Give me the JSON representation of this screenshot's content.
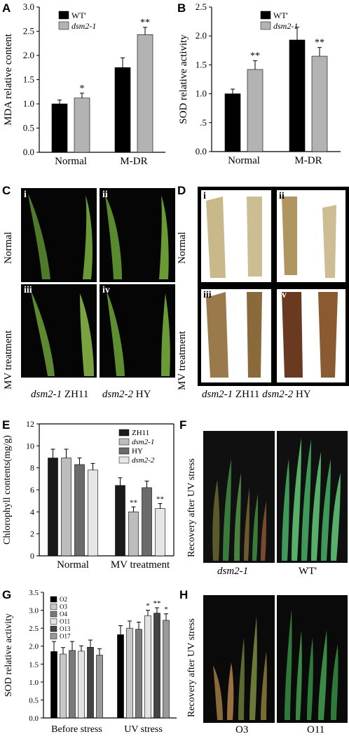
{
  "panels": {
    "A": {
      "label": "A",
      "chart_data": {
        "type": "bar",
        "ylabel": "MDA relative content",
        "categories": [
          "Normal",
          "M-DR"
        ],
        "ylim": [
          0,
          3.0
        ],
        "yticks": [
          "0.0",
          "0.5",
          "1.0",
          "1.5",
          "2.0",
          "2.5",
          "3.0"
        ],
        "series": [
          {
            "name": "WT'",
            "color": "#000000",
            "values": [
              1.0,
              1.75
            ],
            "errors": [
              0.08,
              0.2
            ],
            "sig": [
              "",
              ""
            ]
          },
          {
            "name": "dsm2-1",
            "color": "#b3b3b3",
            "values": [
              1.12,
              2.43
            ],
            "errors": [
              0.1,
              0.15
            ],
            "sig": [
              "*",
              "**"
            ]
          }
        ],
        "legend": "top-left"
      }
    },
    "B": {
      "label": "B",
      "chart_data": {
        "type": "bar",
        "ylabel": "SOD relative activity",
        "categories": [
          "Normal",
          "M-DR"
        ],
        "ylim": [
          0,
          2.5
        ],
        "yticks": [
          "0.0",
          ".5",
          "1.0",
          "1.5",
          "2.0",
          "2.5"
        ],
        "series": [
          {
            "name": "WT'",
            "color": "#000000",
            "values": [
              1.0,
              1.93
            ],
            "errors": [
              0.08,
              0.22
            ],
            "sig": [
              "",
              ""
            ]
          },
          {
            "name": "dsm2-1",
            "color": "#b3b3b3",
            "values": [
              1.42,
              1.65
            ],
            "errors": [
              0.15,
              0.15
            ],
            "sig": [
              "**",
              "**"
            ]
          }
        ],
        "legend": "top-left"
      }
    },
    "C": {
      "label": "C",
      "row_labels": [
        "Normal",
        "MV treatment"
      ],
      "sub": [
        "i",
        "ii",
        "iii",
        "iv"
      ],
      "captions": [
        "dsm2-1",
        "ZH11",
        "dsm2-2",
        "HY"
      ]
    },
    "D": {
      "label": "D",
      "row_labels": [
        "Normal",
        "MV treatment"
      ],
      "sub": [
        "i",
        "ii",
        "iii",
        "iv"
      ],
      "captions": [
        "dsm2-1",
        "ZH11",
        "dsm2-2",
        "HY"
      ]
    },
    "E": {
      "label": "E",
      "chart_data": {
        "type": "bar",
        "ylabel": "Chlorophyll contents(mg/g)",
        "categories": [
          "Normal",
          "MV treatment"
        ],
        "ylim": [
          0,
          12
        ],
        "yticks": [
          "0",
          "2",
          "4",
          "6",
          "8",
          "10",
          "12"
        ],
        "series": [
          {
            "name": "ZH11",
            "color": "#1a1a1a",
            "values": [
              8.9,
              6.4
            ],
            "errors": [
              0.8,
              0.7
            ],
            "sig": [
              "",
              ""
            ]
          },
          {
            "name": "dsm2-1",
            "color": "#bdbdbd",
            "values": [
              8.9,
              4.0
            ],
            "errors": [
              0.8,
              0.45
            ],
            "sig": [
              "",
              "**"
            ]
          },
          {
            "name": "HY",
            "color": "#6b6b6b",
            "values": [
              8.3,
              6.2
            ],
            "errors": [
              0.6,
              0.6
            ],
            "sig": [
              "",
              ""
            ]
          },
          {
            "name": "dsm2-2",
            "color": "#e6e6e6",
            "values": [
              7.8,
              4.3
            ],
            "errors": [
              0.6,
              0.45
            ],
            "sig": [
              "",
              "**"
            ]
          }
        ],
        "legend": "top-right"
      }
    },
    "F": {
      "label": "F",
      "side_label": "Recovery after UV stress",
      "captions": [
        "dsm2-1",
        "WT'"
      ]
    },
    "G": {
      "label": "G",
      "chart_data": {
        "type": "bar",
        "ylabel": "SOD relative activity",
        "categories": [
          "Before stress",
          "UV stress"
        ],
        "ylim": [
          0,
          3.5
        ],
        "yticks": [
          "0.0",
          "0.5",
          "1.0",
          "1.5",
          "2.0",
          "2.5",
          "3.0",
          "3.5"
        ],
        "series": [
          {
            "name": "O2",
            "color": "#000000",
            "values": [
              1.85,
              2.32
            ],
            "errors": [
              0.28,
              0.25
            ],
            "sig": [
              "",
              ""
            ]
          },
          {
            "name": "O3",
            "color": "#c8c8c8",
            "values": [
              1.78,
              2.5
            ],
            "errors": [
              0.18,
              0.2
            ],
            "sig": [
              "",
              ""
            ]
          },
          {
            "name": "O4",
            "color": "#7a7a7a",
            "values": [
              1.88,
              2.47
            ],
            "errors": [
              0.25,
              0.2
            ],
            "sig": [
              "",
              ""
            ]
          },
          {
            "name": "O11",
            "color": "#e3e3e3",
            "values": [
              1.86,
              2.85
            ],
            "errors": [
              0.15,
              0.15
            ],
            "sig": [
              "",
              "*"
            ]
          },
          {
            "name": "O13",
            "color": "#444444",
            "values": [
              1.97,
              2.92
            ],
            "errors": [
              0.2,
              0.15
            ],
            "sig": [
              "",
              "**"
            ]
          },
          {
            "name": "O17",
            "color": "#9a9a9a",
            "values": [
              1.75,
              2.72
            ],
            "errors": [
              0.18,
              0.18
            ],
            "sig": [
              "",
              "*"
            ]
          }
        ],
        "legend": "top-left"
      }
    },
    "H": {
      "label": "H",
      "side_label": "Recovery after UV stress",
      "captions": [
        "O3",
        "O11"
      ]
    }
  }
}
